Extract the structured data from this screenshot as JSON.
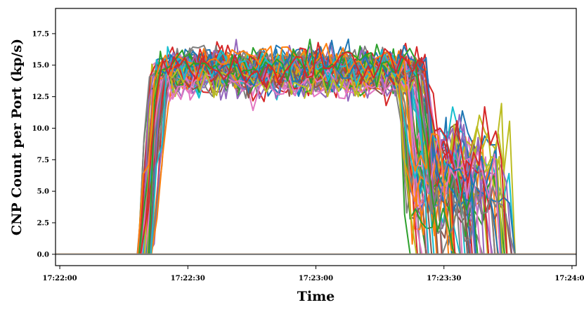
{
  "chart_data": {
    "type": "line",
    "title": "",
    "xlabel": "Time",
    "ylabel": "CNP Count per Port (kp/s)",
    "x_range": [
      "17:21:59",
      "17:24:01"
    ],
    "ylim": [
      -0.9,
      19.5
    ],
    "x_ticks": [
      "17:22:00",
      "17:22:30",
      "17:23:00",
      "17:23:30",
      "17:24:00"
    ],
    "y_ticks": [
      "0.0",
      "2.5",
      "5.0",
      "7.5",
      "10.0",
      "12.5",
      "15.0",
      "17.5"
    ],
    "grid": false,
    "legend": "none",
    "series_count": 64,
    "colors": [
      "#1f77b4",
      "#ff7f0e",
      "#2ca02c",
      "#d62728",
      "#9467bd",
      "#8c564b",
      "#e377c2",
      "#7f7f7f",
      "#bcbd22",
      "#17becf"
    ],
    "profile": {
      "baseline": 0.0,
      "rise_start": "17:22:18",
      "rise_end": "17:22:26",
      "plateau_range": [
        11.5,
        18.7
      ],
      "plateau_mean": 14.5,
      "fall_start": "17:23:21",
      "fall_end": "17:23:28",
      "tail_range": [
        0.5,
        13.2
      ],
      "tail_end": "17:23:42",
      "peak": 18.7
    },
    "series": [
      {
        "values": [
          [
            "17:21:59",
            0.0
          ],
          [
            "17:22:18",
            0.0
          ],
          [
            "17:22:23",
            16.0
          ],
          [
            "17:23:22",
            15.5
          ],
          [
            "17:23:25",
            8.5
          ],
          [
            "17:23:38",
            9.0
          ],
          [
            "17:23:41",
            0.0
          ],
          [
            "17:24:01",
            0.0
          ]
        ]
      },
      {
        "values": [
          [
            "17:21:59",
            0.0
          ],
          [
            "17:24:01",
            0.0
          ]
        ]
      }
    ]
  }
}
